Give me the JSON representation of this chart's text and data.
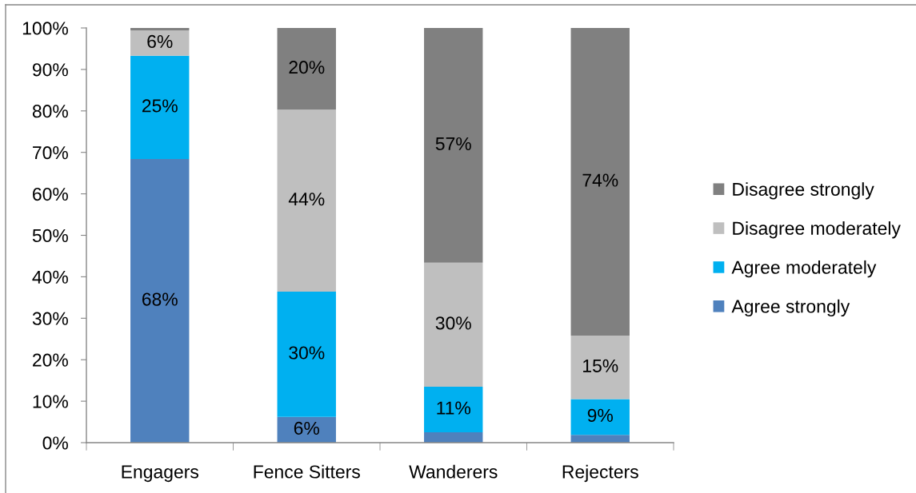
{
  "chart_data": {
    "type": "bar",
    "stacked": true,
    "categories": [
      "Engagers",
      "Fence Sitters",
      "Wanderers",
      "Rejecters"
    ],
    "series": [
      {
        "name": "Agree strongly",
        "color": "#4f81bd",
        "values": [
          68.4,
          6.2,
          2.5,
          1.9
        ],
        "value_labels": [
          "68%",
          "6%",
          null,
          null
        ]
      },
      {
        "name": "Agree moderately",
        "color": "#00b0f0",
        "values": [
          24.9,
          30.2,
          11.0,
          8.6
        ],
        "value_labels": [
          "25%",
          "30%",
          "11%",
          "9%"
        ]
      },
      {
        "name": "Disagree moderately",
        "color": "#bfbfbf",
        "values": [
          6.1,
          43.9,
          29.9,
          15.3
        ],
        "value_labels": [
          "6%",
          "44%",
          "30%",
          "15%"
        ]
      },
      {
        "name": "Disagree strongly",
        "color": "#808080",
        "values": [
          0.6,
          19.7,
          56.6,
          74.2
        ],
        "value_labels": [
          null,
          "20%",
          "57%",
          "74%"
        ]
      }
    ],
    "ylim": [
      0,
      100
    ],
    "yticks": [
      {
        "value": 0,
        "label": "0%"
      },
      {
        "value": 10,
        "label": "10%"
      },
      {
        "value": 20,
        "label": "20%"
      },
      {
        "value": 30,
        "label": "30%"
      },
      {
        "value": 40,
        "label": "40%"
      },
      {
        "value": 50,
        "label": "50%"
      },
      {
        "value": 60,
        "label": "60%"
      },
      {
        "value": 70,
        "label": "70%"
      },
      {
        "value": 80,
        "label": "80%"
      },
      {
        "value": 90,
        "label": "90%"
      },
      {
        "value": 100,
        "label": "100%"
      }
    ],
    "grid": false,
    "legend": "right"
  }
}
